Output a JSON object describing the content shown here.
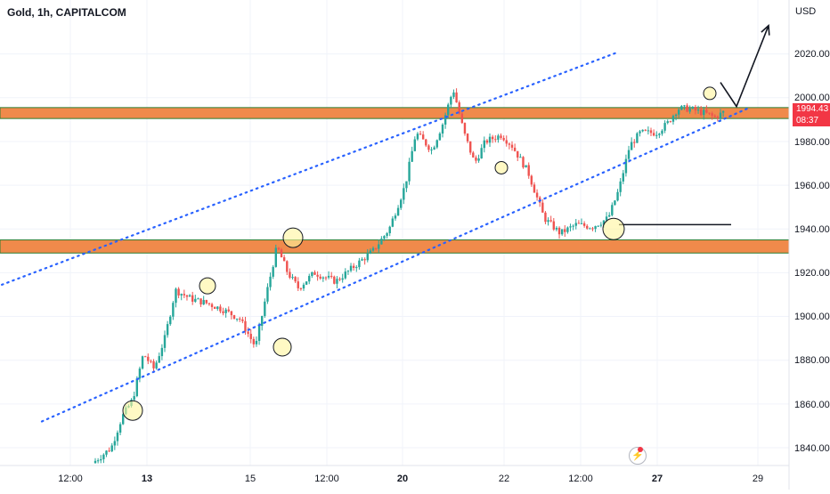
{
  "header": {
    "title": "Gold, 1h, CAPITALCOM"
  },
  "price_axis": {
    "currency": "USD",
    "ticks": [
      "2020.00",
      "2000.00",
      "1980.00",
      "1960.00",
      "1940.00",
      "1920.00",
      "1900.00",
      "1880.00",
      "1860.00",
      "1840.00"
    ]
  },
  "current_price": {
    "value": "1994.43",
    "countdown": "08:37"
  },
  "time_axis": {
    "ticks": [
      "12:00",
      "13",
      "15",
      "12:00",
      "20",
      "22",
      "12:00",
      "27",
      "29"
    ]
  },
  "colors": {
    "up": "#26a69a",
    "down": "#ef5350",
    "zone": "#f08a4b",
    "zone_border": "#2e7d32",
    "channel": "#2962ff",
    "marker": "#fff59d",
    "grid": "#f0f3fa"
  },
  "chart_data": {
    "type": "candlestick",
    "title": "Gold, 1h, CAPITALCOM",
    "ylabel": "USD",
    "ylim": [
      1833,
      2032
    ],
    "grid": true,
    "price_path": [
      [
        0.0,
        1833
      ],
      [
        0.06,
        1836
      ],
      [
        0.12,
        1834
      ],
      [
        0.15,
        1840
      ],
      [
        0.17,
        1854
      ],
      [
        0.19,
        1862
      ],
      [
        0.21,
        1883
      ],
      [
        0.23,
        1876
      ],
      [
        0.25,
        1890
      ],
      [
        0.27,
        1912
      ],
      [
        0.3,
        1908
      ],
      [
        0.33,
        1906
      ],
      [
        0.36,
        1903
      ],
      [
        0.39,
        1899
      ],
      [
        0.42,
        1886
      ],
      [
        0.44,
        1910
      ],
      [
        0.46,
        1932
      ],
      [
        0.48,
        1920
      ],
      [
        0.5,
        1913
      ],
      [
        0.53,
        1920
      ],
      [
        0.57,
        1916
      ],
      [
        0.6,
        1922
      ],
      [
        0.64,
        1930
      ],
      [
        0.67,
        1940
      ],
      [
        0.7,
        1960
      ],
      [
        0.72,
        1984
      ],
      [
        0.75,
        1976
      ],
      [
        0.77,
        1988
      ],
      [
        0.79,
        2004
      ],
      [
        0.81,
        1984
      ],
      [
        0.83,
        1970
      ],
      [
        0.85,
        1980
      ],
      [
        0.88,
        1983
      ],
      [
        0.9,
        1978
      ],
      [
        0.93,
        1966
      ],
      [
        0.96,
        1945
      ],
      [
        0.99,
        1938
      ],
      [
        1.02,
        1942
      ],
      [
        1.05,
        1941
      ],
      [
        1.08,
        1945
      ],
      [
        1.1,
        1958
      ],
      [
        1.12,
        1978
      ],
      [
        1.14,
        1984
      ],
      [
        1.17,
        1984
      ],
      [
        1.19,
        1988
      ],
      [
        1.21,
        1995
      ],
      [
        1.23,
        1995
      ],
      [
        1.26,
        1993
      ],
      [
        1.28,
        1991
      ],
      [
        1.3,
        1994
      ]
    ],
    "zones": [
      {
        "top": 1995.5,
        "bottom": 1990.5
      },
      {
        "top": 1935,
        "bottom": 1929
      }
    ],
    "channel_upper": [
      [
        -0.44,
        1879
      ],
      [
        1.1,
        2021
      ]
    ],
    "channel_lower": [
      [
        0.02,
        1852
      ],
      [
        1.34,
        1995
      ]
    ],
    "horizontal_line": {
      "y": 1942,
      "x_start": 1.1,
      "x_end": 1.31
    },
    "circled_points": [
      [
        0.19,
        1857
      ],
      [
        0.33,
        1914
      ],
      [
        0.49,
        1936
      ],
      [
        0.47,
        1886
      ],
      [
        0.88,
        1968
      ],
      [
        1.09,
        1940
      ],
      [
        1.27,
        2002
      ]
    ],
    "projection_arrow": [
      [
        1.29,
        2007
      ],
      [
        1.32,
        1996
      ],
      [
        1.38,
        2033
      ]
    ]
  }
}
